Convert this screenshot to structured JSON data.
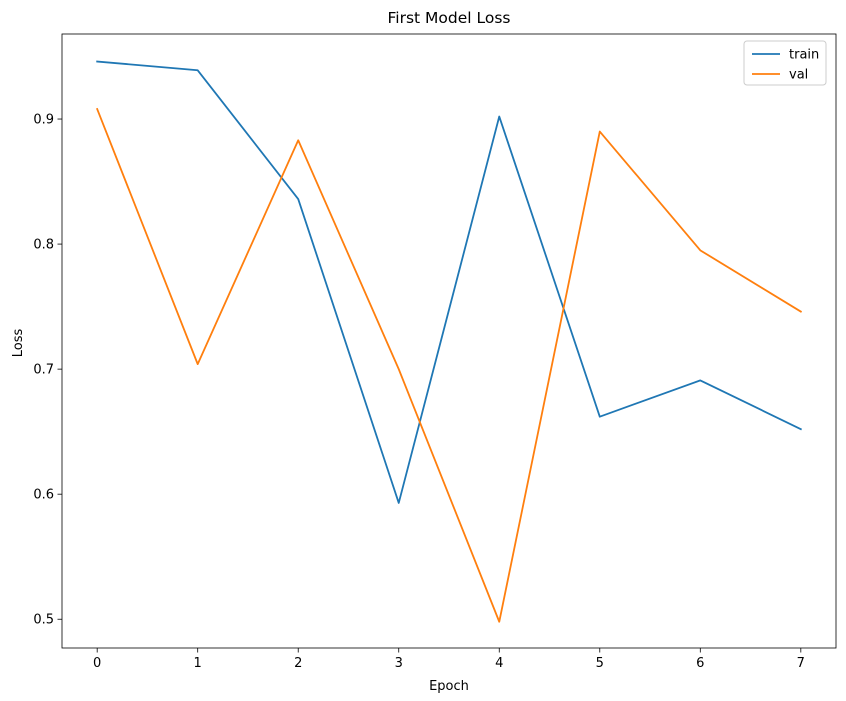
{
  "chart_data": {
    "type": "line",
    "title": "First Model Loss",
    "xlabel": "Epoch",
    "ylabel": "Loss",
    "x": [
      0,
      1,
      2,
      3,
      4,
      5,
      6,
      7
    ],
    "xticks": [
      "0",
      "1",
      "2",
      "3",
      "4",
      "5",
      "6",
      "7"
    ],
    "yticks": [
      "0.5",
      "0.6",
      "0.7",
      "0.8",
      "0.9"
    ],
    "ytick_values": [
      0.5,
      0.6,
      0.7,
      0.8,
      0.9
    ],
    "xlim": [
      -0.35,
      7.35
    ],
    "ylim": [
      0.477,
      0.968
    ],
    "grid": false,
    "legend_position": "top-right",
    "series": [
      {
        "name": "train",
        "color": "#1f77b4",
        "values": [
          0.946,
          0.939,
          0.836,
          0.593,
          0.902,
          0.662,
          0.691,
          0.652
        ]
      },
      {
        "name": "val",
        "color": "#ff7f0e",
        "values": [
          0.908,
          0.704,
          0.883,
          0.7,
          0.498,
          0.89,
          0.795,
          0.746
        ]
      }
    ]
  }
}
